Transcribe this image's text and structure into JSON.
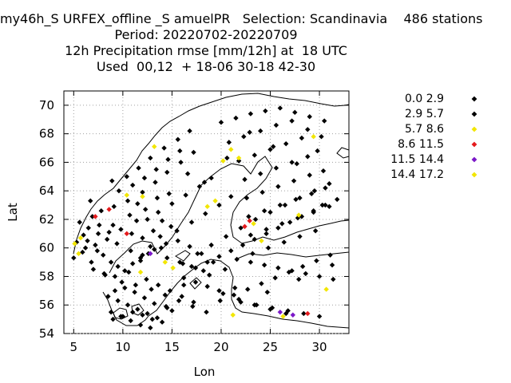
{
  "title_lines": [
    "my46h_S URFEX_offline _S amuelPR   Selection: Scandinavia    486 stations",
    "Period: 20220702-20220709",
    "12h Precipitation rmse [mm/12h] at  18 UTC",
    "Used  00,12  + 18-06 30-18 42-30"
  ],
  "chart_data": {
    "type": "scatter",
    "title": "12h Precipitation rmse [mm/12h] at  18 UTC",
    "xlabel": "Lon",
    "ylabel": "Lat",
    "xlim": [
      4,
      33
    ],
    "ylim": [
      54,
      71
    ],
    "xticks": [
      5,
      10,
      15,
      20,
      25,
      30
    ],
    "yticks": [
      54,
      56,
      58,
      60,
      62,
      64,
      66,
      68,
      70
    ],
    "grid": true,
    "legend_position": "right",
    "series": [
      {
        "name": "0.0 2.9",
        "color": "#000000",
        "x": [
          5.3,
          6.0,
          6.5,
          7.2,
          8.0,
          8.8,
          9.5,
          10.2,
          11.0,
          11.8,
          12.6,
          5.6,
          6.9,
          7.8,
          9.1,
          10.5,
          11.5,
          12.3,
          13.5,
          6.2,
          7.4,
          8.4,
          9.8,
          10.9,
          12.0,
          13.1,
          14.0,
          7.0,
          8.1,
          9.2,
          10.6,
          11.8,
          12.8,
          13.8,
          14.9,
          9.6,
          11.0,
          12.2,
          13.4,
          14.6,
          15.8,
          10.4,
          11.6,
          12.8,
          14.2,
          15.6,
          16.8,
          12.0,
          13.3,
          14.5,
          15.9,
          17.2,
          13.6,
          15.0,
          16.4,
          17.8,
          19.0,
          15.5,
          17.0,
          18.4,
          19.8,
          21.0,
          17.6,
          19.0,
          20.5,
          22.0,
          23.5,
          25.0,
          26.5,
          28.0,
          29.5,
          31.0,
          20.0,
          21.5,
          23.0,
          24.5,
          26.0,
          27.5,
          29.0,
          30.5,
          20.8,
          22.3,
          24.0,
          25.6,
          27.2,
          28.8,
          30.2,
          21.8,
          23.4,
          25.0,
          26.6,
          28.2,
          29.8,
          22.4,
          24.0,
          25.6,
          27.2,
          28.8,
          30.4,
          22.6,
          24.2,
          25.8,
          27.4,
          29.0,
          30.6,
          22.8,
          24.4,
          26.0,
          27.6,
          29.2,
          23.0,
          24.6,
          26.2,
          27.8,
          29.4,
          31.0,
          23.2,
          24.8,
          26.4,
          28.0,
          29.6,
          21.6,
          23.0,
          24.4,
          25.8,
          27.2,
          28.6,
          30.0,
          31.4,
          22.0,
          23.6,
          25.2,
          26.8,
          28.4,
          30.0,
          20.2,
          21.8,
          23.4,
          25.0,
          26.6,
          14.5,
          15.8,
          17.0,
          18.2,
          16.2,
          17.4,
          18.6,
          19.8,
          12.4,
          13.6,
          14.8,
          16.0,
          17.2,
          8.5,
          9.5,
          10.5,
          11.5,
          12.5,
          13.5,
          14.5,
          8.8,
          9.8,
          10.8,
          11.8,
          12.8,
          9.2,
          10.2,
          11.2,
          12.2,
          13.2,
          14.4,
          9.0,
          10.0,
          11.0,
          12.0,
          13.0,
          14.0,
          15.0,
          16.2,
          17.4,
          18.6,
          19.8,
          21.0,
          22.2,
          23.4,
          24.6,
          25.8,
          27.0,
          28.2,
          29.4,
          30.6,
          31.8,
          5.9,
          6.4,
          7.6,
          8.6,
          9.4,
          10.8,
          12.0,
          13.2,
          14.4,
          15.6,
          16.8,
          18.0,
          19.2,
          20.4
        ],
        "y": [
          60.4,
          60.9,
          61.4,
          60.2,
          59.5,
          59.0,
          58.7,
          58.4,
          58.9,
          59.3,
          59.6,
          61.8,
          62.2,
          62.6,
          62.9,
          63.3,
          63.1,
          62.7,
          63.5,
          60.0,
          59.8,
          60.6,
          61.3,
          61.0,
          60.7,
          61.2,
          61.9,
          58.5,
          58.2,
          58.0,
          58.3,
          59.1,
          60.1,
          60.8,
          61.5,
          64.0,
          64.4,
          64.9,
          65.5,
          66.2,
          66.8,
          65.0,
          65.6,
          66.3,
          67.0,
          67.6,
          68.2,
          63.9,
          64.6,
          65.3,
          66.0,
          66.7,
          62.5,
          63.1,
          63.7,
          64.3,
          64.9,
          61.2,
          61.8,
          62.4,
          63.0,
          63.6,
          59.6,
          60.2,
          60.8,
          61.4,
          62.0,
          62.5,
          63.0,
          63.5,
          64.0,
          64.5,
          68.8,
          69.1,
          69.4,
          69.6,
          69.8,
          69.5,
          69.2,
          68.9,
          67.4,
          67.8,
          68.2,
          68.6,
          68.9,
          68.3,
          67.8,
          66.1,
          66.5,
          66.9,
          67.3,
          67.7,
          66.8,
          64.8,
          65.2,
          65.6,
          66.0,
          66.4,
          65.4,
          63.5,
          63.9,
          64.3,
          64.7,
          65.1,
          64.2,
          62.2,
          62.6,
          63.0,
          63.4,
          63.8,
          60.9,
          61.3,
          61.7,
          62.1,
          62.5,
          62.9,
          59.6,
          60.0,
          60.4,
          60.8,
          61.2,
          59.2,
          59.0,
          58.8,
          58.6,
          58.4,
          58.2,
          58.0,
          57.8,
          56.2,
          56.0,
          55.8,
          55.6,
          55.4,
          55.2,
          56.8,
          56.4,
          56.0,
          55.7,
          55.4,
          59.3,
          59.0,
          58.7,
          58.4,
          57.9,
          57.6,
          57.3,
          57.0,
          57.8,
          57.4,
          57.0,
          56.6,
          56.2,
          56.6,
          56.3,
          56.0,
          55.7,
          55.4,
          55.1,
          55.8,
          55.5,
          55.2,
          54.9,
          54.6,
          54.4,
          57.0,
          57.2,
          56.9,
          56.5,
          56.1,
          55.9,
          55.0,
          55.2,
          55.5,
          55.3,
          55.0,
          54.8,
          55.6,
          57.4,
          58.6,
          59.0,
          59.4,
          59.8,
          60.2,
          60.6,
          61.0,
          61.4,
          61.8,
          62.2,
          62.6,
          63.0,
          63.4,
          59.7,
          60.5,
          61.6,
          61.1,
          60.3,
          59.8,
          59.5,
          59.9,
          60.3,
          60.5,
          60.1,
          59.6,
          59.0,
          58.5
        ]
      },
      {
        "name": "2.9 5.7",
        "color": "#000000",
        "x": [
          5.0,
          6.8,
          8.2,
          9.9,
          11.3,
          12.9,
          14.3,
          15.7,
          17.1,
          18.5,
          19.9,
          21.3,
          22.7,
          24.1,
          25.5,
          26.9,
          28.3,
          29.7,
          31.1,
          7.5,
          9.0,
          10.7,
          12.5,
          14.7,
          16.6,
          18.3,
          20.6,
          22.9,
          25.3,
          27.7,
          30.3,
          6.7,
          8.9,
          11.4,
          13.9,
          16.1,
          18.8,
          21.4,
          24.7,
          27.9,
          31.3
        ],
        "y": [
          59.3,
          59.0,
          58.1,
          57.6,
          57.4,
          57.1,
          56.7,
          56.3,
          55.9,
          55.5,
          56.3,
          56.7,
          57.1,
          57.5,
          57.9,
          58.3,
          58.7,
          59.1,
          59.5,
          61.0,
          61.6,
          62.3,
          62.0,
          63.8,
          65.2,
          64.6,
          66.3,
          68.1,
          67.1,
          65.9,
          63.0,
          63.3,
          64.7,
          61.9,
          60.0,
          58.9,
          58.1,
          57.2,
          56.9,
          57.8,
          58.8
        ]
      },
      {
        "name": "5.7 8.6",
        "color": "#f2e600",
        "x": [
          5.1,
          5.5,
          10.4,
          12.0,
          13.2,
          14.3,
          11.8,
          15.1,
          18.6,
          19.4,
          20.2,
          21.0,
          21.8,
          23.3,
          24.1,
          27.9,
          29.4,
          30.7,
          21.2,
          26.3,
          5.7
        ],
        "y": [
          60.3,
          59.6,
          63.7,
          63.6,
          67.1,
          59.0,
          58.3,
          58.6,
          62.9,
          63.3,
          66.1,
          66.9,
          66.3,
          61.7,
          60.5,
          62.3,
          67.8,
          57.1,
          55.3,
          55.2,
          60.7
        ]
      },
      {
        "name": "8.6 11.5",
        "color": "#e41a1c",
        "x": [
          7.2,
          8.6,
          10.4,
          22.4,
          22.9,
          28.8
        ],
        "y": [
          62.2,
          62.7,
          61.0,
          61.5,
          61.9,
          55.4
        ]
      },
      {
        "name": "11.5 14.4",
        "color": "#7b18c8",
        "x": [
          12.8,
          26.0,
          27.3
        ],
        "y": [
          59.6,
          55.5,
          55.3
        ]
      },
      {
        "name": "14.4 17.2",
        "color": "#f2e600",
        "x": [],
        "y": []
      }
    ]
  }
}
